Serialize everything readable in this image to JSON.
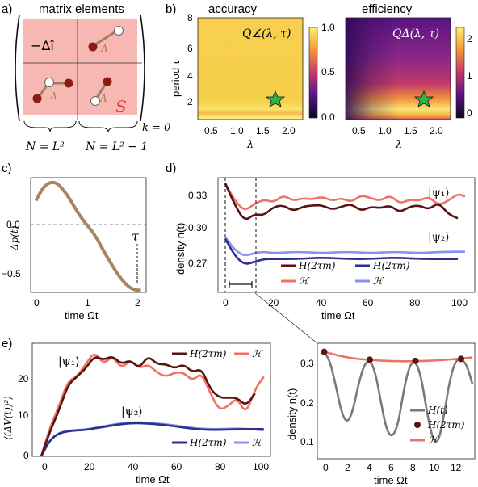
{
  "panel_labels": {
    "a": "a)",
    "b": "b)",
    "c": "c)",
    "d": "d)",
    "e": "e)"
  },
  "panel_a": {
    "title": "matrix elements",
    "operator_label": "−Δî",
    "lambda_symbol": "Λ",
    "s_label": "S",
    "k_label": "k = 0",
    "n_left": "N = L²",
    "n_right": "N = L² − 1",
    "colors": {
      "block": "#f7b8b3",
      "dark_dot": "#8b1a10",
      "light_dot": "#ffffff",
      "s_color": "#e8312c"
    }
  },
  "panel_b": {
    "xlabel": "λ",
    "ylabel": "period τ",
    "yticks": [
      "2",
      "4",
      "6",
      "8"
    ],
    "xticks": [
      "0.5",
      "1.0",
      "1.5",
      "2.0"
    ],
    "left": {
      "title": "accuracy",
      "formula": "Q∡(λ, τ)",
      "colorbar_ticks": [
        "0.0",
        "0.5",
        "1.0"
      ],
      "star": {
        "lambda": 1.5,
        "tau": 2.0
      }
    },
    "right": {
      "title": "efficiency",
      "formula": "QΔ(λ, τ)",
      "colorbar_ticks": [
        "0",
        "1",
        "2"
      ],
      "star": {
        "lambda": 1.5,
        "tau": 2.0
      }
    },
    "colors": {
      "star": "#2db34a"
    }
  },
  "chart_data": [
    {
      "id": "c",
      "type": "line",
      "xlabel": "time Ωt",
      "ylabel": "Δp(t)",
      "xlim": [
        -0.1,
        2.1
      ],
      "ylim": [
        -0.62,
        0.43
      ],
      "xticks": [
        "0",
        "1",
        "2"
      ],
      "yticks": [
        "−0.5",
        "0.0"
      ],
      "tau_label": "τ",
      "series": [
        {
          "x": [
            0.0,
            0.1,
            0.2,
            0.3,
            0.4,
            0.5,
            0.6,
            0.7,
            0.8,
            0.9,
            1.0,
            1.1,
            1.2,
            1.3,
            1.4,
            1.5,
            1.6,
            1.7,
            1.8,
            1.9,
            2.0
          ],
          "values": [
            0.22,
            0.31,
            0.37,
            0.39,
            0.38,
            0.33,
            0.27,
            0.19,
            0.11,
            0.04,
            -0.02,
            -0.08,
            -0.16,
            -0.25,
            -0.33,
            -0.41,
            -0.48,
            -0.54,
            -0.58,
            -0.6,
            -0.6
          ],
          "color": "#a78560"
        }
      ]
    },
    {
      "id": "d",
      "type": "line",
      "xlabel": "time Ωt",
      "ylabel": "density n(t)",
      "xlim": [
        -3,
        103
      ],
      "ylim": [
        0.258,
        0.337
      ],
      "xticks": [
        "0",
        "20",
        "40",
        "60",
        "80",
        "100"
      ],
      "yticks": [
        "0.27",
        "0.30",
        "0.33"
      ],
      "psi1_label": "|ψ₁⟩",
      "psi2_label": "|ψ₂⟩",
      "legend": [
        "H(2τm)",
        "H(2τm)",
        "ℋ",
        "ℋ"
      ],
      "series": [
        {
          "x": [
            0,
            4,
            8,
            12,
            16,
            20,
            24,
            28,
            32,
            36,
            40,
            44,
            48,
            52,
            56,
            60,
            64,
            68,
            72,
            76,
            80,
            84,
            88,
            92,
            96
          ],
          "values": [
            0.333,
            0.318,
            0.307,
            0.312,
            0.311,
            0.317,
            0.318,
            0.314,
            0.317,
            0.318,
            0.318,
            0.315,
            0.317,
            0.319,
            0.314,
            0.317,
            0.316,
            0.318,
            0.313,
            0.317,
            0.318,
            0.315,
            0.32,
            0.312,
            0.309
          ],
          "color": "#5a1410"
        },
        {
          "x": [
            0,
            4,
            8,
            12,
            16,
            20,
            24,
            28,
            32,
            36,
            40,
            44,
            48,
            52,
            56,
            60,
            64,
            68,
            72,
            76,
            80,
            84,
            88,
            92,
            96,
            99
          ],
          "values": [
            0.333,
            0.321,
            0.314,
            0.319,
            0.322,
            0.32,
            0.325,
            0.321,
            0.323,
            0.322,
            0.324,
            0.321,
            0.323,
            0.32,
            0.325,
            0.323,
            0.321,
            0.325,
            0.319,
            0.322,
            0.321,
            0.324,
            0.318,
            0.321,
            0.326,
            0.324
          ],
          "color": "#f07166"
        },
        {
          "x": [
            0,
            4,
            8,
            12,
            16,
            20,
            30,
            40,
            50,
            60,
            70,
            80,
            90,
            96
          ],
          "values": [
            0.295,
            0.283,
            0.277,
            0.279,
            0.281,
            0.281,
            0.281,
            0.282,
            0.281,
            0.281,
            0.282,
            0.281,
            0.281,
            0.281
          ],
          "color": "#2c2f8c"
        },
        {
          "x": [
            0,
            4,
            8,
            12,
            16,
            20,
            30,
            40,
            50,
            60,
            70,
            80,
            90,
            99
          ],
          "values": [
            0.296,
            0.287,
            0.283,
            0.285,
            0.286,
            0.285,
            0.286,
            0.285,
            0.286,
            0.285,
            0.286,
            0.285,
            0.286,
            0.286
          ],
          "color": "#8b8ff0"
        }
      ]
    },
    {
      "id": "e",
      "type": "line",
      "xlabel": "time Ωt",
      "ylabel": "⟨(ΔV(t))²⟩",
      "xlim": [
        -4,
        103
      ],
      "ylim": [
        0,
        27
      ],
      "xticks": [
        "0",
        "20",
        "40",
        "60",
        "80",
        "100"
      ],
      "yticks": [
        "0",
        "10",
        "20"
      ],
      "psi1_label": "|ψ₁⟩",
      "psi2_label": "|ψ₂⟩",
      "legend": [
        "H(2τm)",
        "ℋ",
        "H(2τm)",
        "ℋ"
      ],
      "series": [
        {
          "x": [
            0,
            4,
            8,
            12,
            16,
            20,
            24,
            28,
            32,
            36,
            40,
            44,
            48,
            52,
            56,
            60,
            64,
            68,
            72,
            76,
            80,
            84,
            88,
            92,
            96
          ],
          "values": [
            0,
            6,
            11,
            17,
            19,
            21,
            24,
            23,
            24,
            22,
            23,
            21,
            24,
            22,
            22,
            21,
            22,
            20,
            21,
            16,
            14,
            14,
            14,
            12,
            15
          ],
          "color": "#5a1410"
        },
        {
          "x": [
            0,
            4,
            8,
            12,
            16,
            20,
            24,
            28,
            32,
            36,
            40,
            44,
            48,
            52,
            56,
            60,
            64,
            68,
            72,
            76,
            80,
            84,
            88,
            92,
            96,
            100
          ],
          "values": [
            0,
            7,
            12,
            18,
            19,
            22,
            25,
            22,
            24,
            21,
            23,
            21,
            22,
            20,
            19,
            20,
            20,
            18,
            20,
            15,
            11,
            12,
            14,
            10,
            16,
            19
          ],
          "color": "#f07166"
        },
        {
          "x": [
            0,
            4,
            8,
            12,
            16,
            20,
            30,
            40,
            50,
            60,
            70,
            80,
            90,
            100
          ],
          "values": [
            0,
            4,
            5.5,
            6,
            6.2,
            6.3,
            7.2,
            8,
            7.8,
            7.2,
            6.4,
            6.3,
            6.5,
            6.5
          ],
          "color": "#2c2f8c"
        },
        {
          "x": [
            0,
            4,
            8,
            12,
            16,
            20,
            30,
            40,
            50,
            60,
            70,
            80,
            90,
            100
          ],
          "values": [
            0,
            4,
            5.6,
            6.1,
            6.3,
            6.4,
            7.4,
            8.2,
            8.0,
            7.4,
            6.6,
            6.5,
            6.7,
            6.2
          ],
          "color": "#8b8ff0"
        }
      ]
    },
    {
      "id": "inset",
      "type": "line",
      "xlabel": "time Ωt",
      "ylabel": "density n(t)",
      "xlim": [
        -0.6,
        13.2
      ],
      "ylim": [
        0.06,
        0.355
      ],
      "xticks": [
        "0",
        "2",
        "4",
        "6",
        "8",
        "10",
        "12"
      ],
      "yticks": [
        "0.1",
        "0.2",
        "0.3"
      ],
      "legend": [
        "H(t)",
        "H(2τm)",
        "ℋ"
      ],
      "series": [
        {
          "name": "H(t)",
          "color": "#7a7a7a",
          "x": [
            0,
            0.5,
            1,
            1.5,
            2,
            2.5,
            3,
            3.5,
            4,
            4.5,
            5,
            5.5,
            6,
            6.5,
            7,
            7.5,
            8,
            8.5,
            9,
            9.5,
            10,
            10.5,
            11,
            11.5,
            12,
            12.5,
            13
          ],
          "values": [
            0.333,
            0.31,
            0.25,
            0.18,
            0.15,
            0.18,
            0.25,
            0.3,
            0.313,
            0.28,
            0.2,
            0.13,
            0.115,
            0.15,
            0.24,
            0.3,
            0.31,
            0.27,
            0.18,
            0.11,
            0.1,
            0.17,
            0.26,
            0.31,
            0.315,
            0.3,
            0.25
          ]
        },
        {
          "name": "H(2τm)",
          "color": "#5a1410",
          "x": [
            0,
            4,
            8,
            12
          ],
          "values": [
            0.333,
            0.313,
            0.31,
            0.315
          ]
        },
        {
          "name": "ℋ",
          "color": "#f07166",
          "x": [
            0,
            2,
            4,
            6,
            8,
            10,
            12,
            13
          ],
          "values": [
            0.333,
            0.318,
            0.312,
            0.309,
            0.309,
            0.311,
            0.316,
            0.319
          ]
        }
      ]
    }
  ]
}
